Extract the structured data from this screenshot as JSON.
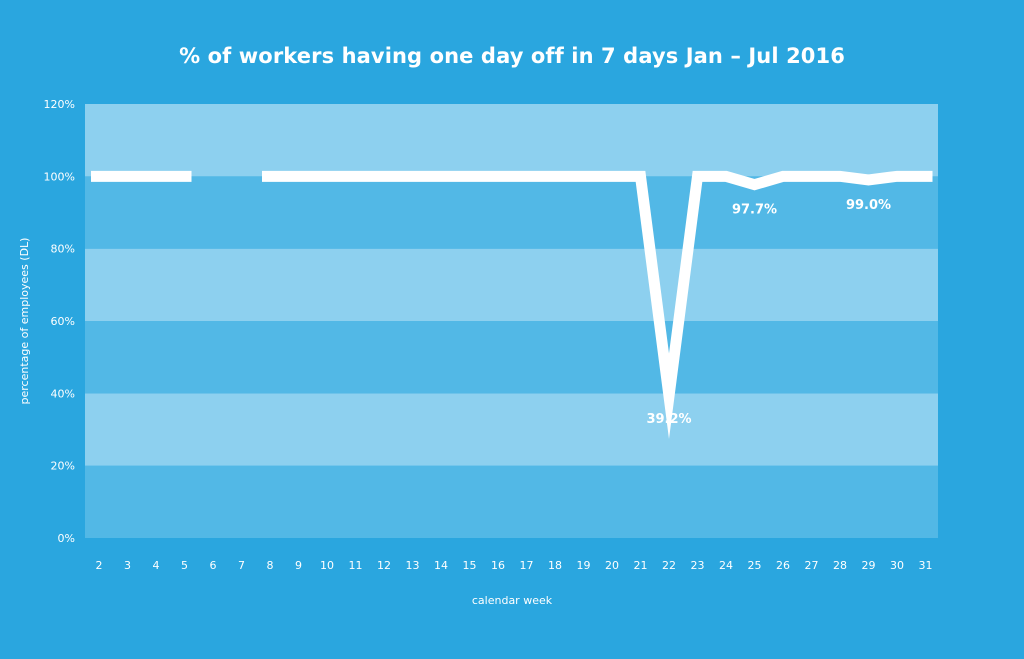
{
  "chart_data": {
    "type": "line",
    "title": "% of workers having one day off in 7 days Jan – Jul 2016",
    "xlabel": "calendar week",
    "ylabel": "percentage of employees (DL)",
    "ylim": [
      0,
      120
    ],
    "y_ticks": [
      0,
      20,
      40,
      60,
      80,
      100,
      120
    ],
    "y_tick_labels": [
      "0%",
      "20%",
      "40%",
      "60%",
      "80%",
      "100%",
      "120%"
    ],
    "categories": [
      "2",
      "3",
      "4",
      "5",
      "6",
      "7",
      "8",
      "9",
      "10",
      "11",
      "12",
      "13",
      "14",
      "15",
      "16",
      "17",
      "18",
      "19",
      "20",
      "21",
      "22",
      "23",
      "24",
      "25",
      "26",
      "27",
      "28",
      "29",
      "30",
      "31"
    ],
    "series": [
      {
        "values": [
          100,
          100,
          100,
          100,
          null,
          null,
          100,
          100,
          100,
          100,
          100,
          100,
          100,
          100,
          100,
          100,
          100,
          100,
          100,
          100,
          39.2,
          100,
          100,
          97.7,
          100,
          100,
          100,
          99.0,
          100,
          100
        ]
      }
    ],
    "annotations": [
      {
        "category": "22",
        "value": 39.2,
        "text": "39.2%"
      },
      {
        "category": "25",
        "value": 97.7,
        "text": "97.7%"
      },
      {
        "category": "29",
        "value": 99.0,
        "text": "99.0%"
      }
    ],
    "grid": "alternating horizontal bands",
    "legend": "none",
    "colors": {
      "background": "#2aa6df",
      "band_light": "#8dd0ef",
      "band_dark": "#52b8e6",
      "line": "#ffffff"
    }
  }
}
